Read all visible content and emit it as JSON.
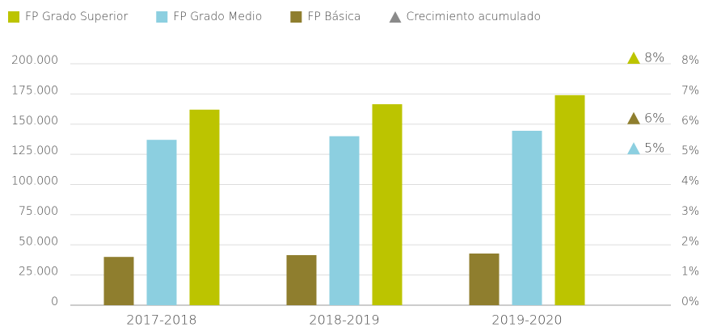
{
  "chart_data": {
    "type": "bar",
    "categories": [
      "2017-2018",
      "2018-2019",
      "2019-2020"
    ],
    "series": [
      {
        "name": "FP Básica",
        "color": "#8f7e2e",
        "values": [
          40000,
          41500,
          42800
        ]
      },
      {
        "name": "FP Grado Medio",
        "color": "#8ccfe0",
        "values": [
          137000,
          140000,
          144500
        ]
      },
      {
        "name": "FP Grado Superior",
        "color": "#bcc400",
        "values": [
          162000,
          166500,
          174000
        ]
      },
      {
        "name": "Crecimiento acumulado",
        "color": "#8a8a8a",
        "axis": "y2",
        "values": [
          8,
          6,
          5
        ],
        "value_labels": [
          "8%",
          "6%",
          "5%"
        ],
        "point_colors": [
          "#bcc400",
          "#8f7e2e",
          "#8ccfe0"
        ]
      }
    ],
    "legend_order": [
      2,
      1,
      0,
      3
    ],
    "ylim": [
      0,
      200000
    ],
    "yticks": [
      0,
      {
        "value": 25000,
        "label": "25.000"
      },
      {
        "value": 50000,
        "label": "50.000"
      },
      {
        "value": 75000,
        "label": "75.000"
      },
      {
        "value": 100000,
        "label": "100.000"
      },
      {
        "value": 125000,
        "label": "125.000"
      },
      {
        "value": 150000,
        "label": "150.000"
      },
      {
        "value": 175000,
        "label": "175.000"
      },
      {
        "value": 200000,
        "label": "200.000"
      }
    ],
    "y2lim": [
      0,
      8
    ],
    "y2ticks": [
      {
        "value": 0,
        "label": "0%"
      },
      {
        "value": 1,
        "label": "1%"
      },
      {
        "value": 2,
        "label": "2%"
      },
      {
        "value": 3,
        "label": "3%"
      },
      {
        "value": 4,
        "label": "4%"
      },
      {
        "value": 5,
        "label": "5%"
      },
      {
        "value": 6,
        "label": "6%"
      },
      {
        "value": 7,
        "label": "7%"
      },
      {
        "value": 8,
        "label": "8%"
      }
    ],
    "grid": true,
    "legend": "top"
  }
}
